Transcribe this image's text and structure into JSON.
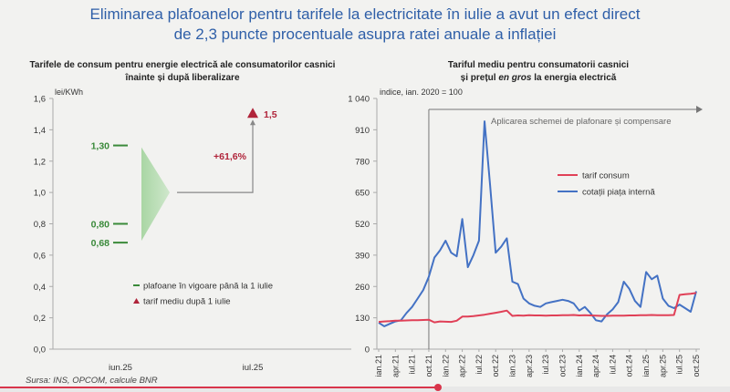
{
  "title": {
    "line1": "Eliminarea plafoanelor pentru tarifele la electricitate în iulie a avut un efect direct",
    "line2": "de 2,3 puncte procentuale asupra ratei anuale a inflației"
  },
  "source": "Sursa: INS, OPCOM, calcule BNR",
  "colors": {
    "title": "#2f5fa8",
    "green": "#3a8a3a",
    "red": "#b0243a",
    "blue": "#4472c4",
    "pink": "#e04057"
  },
  "video": {
    "progress": 0.6
  },
  "chart_data": [
    {
      "type": "scatter",
      "title": "Tarifele de consum pentru energie electrică ale consumatorilor casnici înainte și după liberalizare",
      "title_lines": [
        "Tarifele de consum pentru energie electrică ale consumatorilor casnici",
        "înainte și după liberalizare"
      ],
      "ylabel": "lei/KWh",
      "ylim": [
        0,
        1.6
      ],
      "yticks": [
        "0,0",
        "0,2",
        "0,4",
        "0,6",
        "0,8",
        "1,0",
        "1,2",
        "1,4",
        "1,6"
      ],
      "categories": [
        "iun.25",
        "iul.25"
      ],
      "series": [
        {
          "name": "plafoane în vigoare până la 1 iulie",
          "category": "iun.25",
          "values": [
            1.3,
            0.8,
            0.68
          ],
          "labels": [
            "1,30",
            "0,80",
            "0,68"
          ]
        },
        {
          "name": "tarif mediu după 1 iulie",
          "category": "iul.25",
          "values": [
            1.5
          ],
          "labels": [
            "1,5"
          ]
        }
      ],
      "arrow_from": 1.0,
      "annotation": "+61,6%"
    },
    {
      "type": "line",
      "title": "Tariful mediu pentru consumatorii casnici și prețul en gros la energia electrică",
      "title_line1": "Tariful mediu pentru consumatorii casnici",
      "title_line2_pre": "și prețul ",
      "title_line2_em": "en gros",
      "title_line2_post": " la energia electrică",
      "ylabel": "indice, ian. 2020 = 100",
      "ylim": [
        0,
        1040
      ],
      "yticks": [
        "0",
        "130",
        "260",
        "390",
        "520",
        "650",
        "780",
        "910",
        "1 040"
      ],
      "x_start": "ian.21",
      "xticks": [
        "ian.21",
        "apr.21",
        "iul.21",
        "oct.21",
        "ian.22",
        "apr.22",
        "iul.22",
        "oct.22",
        "ian.23",
        "apr.23",
        "iul.23",
        "oct.23",
        "ian.24",
        "apr.24",
        "iul.24",
        "oct.24",
        "ian.25",
        "apr.25",
        "iul.25",
        "oct.25"
      ],
      "annotation": "Aplicarea schemei de plafonare și compensare",
      "annotation_start": "oct.21",
      "legend_position": "center-right",
      "series": [
        {
          "name": "tarif consum",
          "values": [
            113,
            115,
            116,
            118,
            118,
            119,
            120,
            120,
            121,
            122,
            111,
            115,
            114,
            113,
            118,
            135,
            135,
            137,
            140,
            143,
            147,
            151,
            155,
            160,
            138,
            140,
            139,
            141,
            140,
            140,
            139,
            140,
            140,
            141,
            141,
            142,
            140,
            141,
            140,
            139,
            138,
            138,
            139,
            139,
            139,
            140,
            140,
            141,
            141,
            142,
            141,
            141,
            141,
            142,
            225,
            228,
            230,
            233
          ]
        },
        {
          "name": "cotații piața internă",
          "values": [
            110,
            95,
            105,
            115,
            120,
            150,
            175,
            210,
            245,
            300,
            380,
            410,
            450,
            400,
            385,
            540,
            340,
            390,
            450,
            945,
            680,
            400,
            425,
            460,
            280,
            270,
            210,
            190,
            180,
            175,
            190,
            195,
            200,
            205,
            200,
            190,
            160,
            175,
            150,
            120,
            115,
            145,
            165,
            195,
            280,
            250,
            200,
            175,
            320,
            290,
            305,
            210,
            180,
            170,
            185,
            170,
            155,
            240
          ]
        }
      ]
    }
  ]
}
